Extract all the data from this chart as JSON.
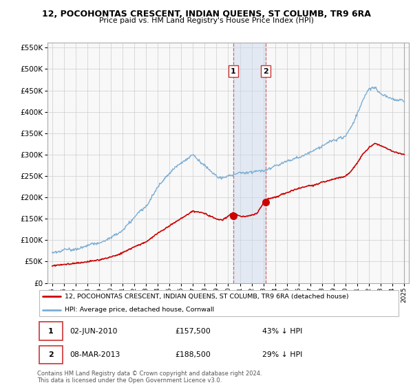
{
  "title": "12, POCOHONTAS CRESCENT, INDIAN QUEENS, ST COLUMB, TR9 6RA",
  "subtitle": "Price paid vs. HM Land Registry's House Price Index (HPI)",
  "legend_red": "12, POCOHONTAS CRESCENT, INDIAN QUEENS, ST COLUMB, TR9 6RA (detached house)",
  "legend_blue": "HPI: Average price, detached house, Cornwall",
  "sale1_date": "02-JUN-2010",
  "sale1_price": "£157,500",
  "sale1_hpi": "43% ↓ HPI",
  "sale1_year": 2010.42,
  "sale1_value": 157500,
  "sale2_date": "08-MAR-2013",
  "sale2_price": "£188,500",
  "sale2_hpi": "29% ↓ HPI",
  "sale2_year": 2013.18,
  "sale2_value": 188500,
  "footer": "Contains HM Land Registry data © Crown copyright and database right 2024.\nThis data is licensed under the Open Government Licence v3.0.",
  "ylim": [
    0,
    562500
  ],
  "ytick_step": 50000,
  "xlim_start": 1994.6,
  "xlim_end": 2025.4,
  "red_color": "#cc0000",
  "blue_color": "#7aadd4",
  "vline_color": "#cc3333",
  "shade_color": "#c8d8ee",
  "shade_alpha": 0.45,
  "bg_color": "#f8f8f8"
}
